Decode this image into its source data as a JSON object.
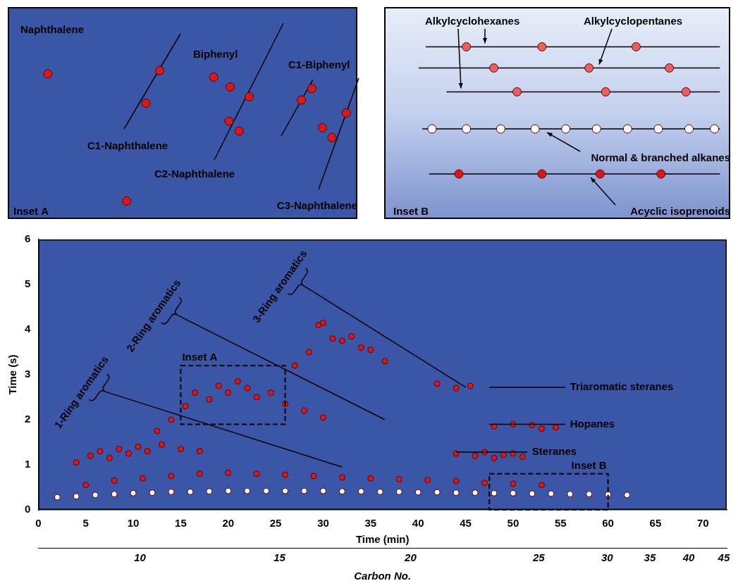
{
  "chart_data": [
    {
      "type": "scatter",
      "x_label": "Time (min)",
      "y_label": "Time (s)",
      "xlim": [
        0,
        72.5
      ],
      "xticks": [
        0,
        5,
        10,
        15,
        20,
        25,
        30,
        35,
        40,
        45,
        50,
        55,
        60,
        65,
        70
      ],
      "ylim": [
        0,
        6
      ],
      "yticks": [
        0,
        1,
        2,
        3,
        4,
        5,
        6
      ],
      "x2_label": "Carbon No.",
      "x2lim": [
        0,
        72.5
      ],
      "x2ticks": [
        {
          "value": 10.7,
          "label": "10"
        },
        {
          "value": 25.4,
          "label": "15"
        },
        {
          "value": 39.2,
          "label": "20"
        },
        {
          "value": 52.7,
          "label": "25"
        },
        {
          "value": 59.9,
          "label": "30"
        },
        {
          "value": 64.4,
          "label": "35"
        },
        {
          "value": 68.5,
          "label": "40"
        },
        {
          "value": 72.2,
          "label": "45"
        }
      ],
      "grid": false,
      "annotations": [
        "1-Ring aromatics",
        "2-Ring aromatics",
        "3-Ring aromatics",
        "Triaromatic steranes",
        "Hopanes",
        "Steranes"
      ],
      "series": [
        {
          "color": "#ffffff",
          "values": [
            [
              2,
              0.28
            ],
            [
              4,
              0.3
            ],
            [
              6,
              0.33
            ],
            [
              8,
              0.35
            ],
            [
              10,
              0.37
            ],
            [
              12,
              0.38
            ],
            [
              14,
              0.4
            ],
            [
              16,
              0.4
            ],
            [
              18,
              0.41
            ],
            [
              20,
              0.42
            ],
            [
              22,
              0.42
            ],
            [
              24,
              0.42
            ],
            [
              26,
              0.42
            ],
            [
              28,
              0.42
            ],
            [
              30,
              0.42
            ],
            [
              32,
              0.41
            ],
            [
              34,
              0.41
            ],
            [
              36,
              0.4
            ],
            [
              38,
              0.4
            ],
            [
              40,
              0.39
            ],
            [
              42,
              0.39
            ],
            [
              44,
              0.38
            ],
            [
              46,
              0.38
            ],
            [
              48,
              0.37
            ],
            [
              50,
              0.37
            ],
            [
              52,
              0.36
            ],
            [
              54,
              0.36
            ],
            [
              56,
              0.35
            ],
            [
              58,
              0.35
            ],
            [
              60,
              0.34
            ],
            [
              62,
              0.33
            ]
          ]
        },
        {
          "color": "#d7191c",
          "values": [
            [
              5,
              0.55
            ],
            [
              8,
              0.65
            ],
            [
              11,
              0.7
            ],
            [
              14,
              0.75
            ],
            [
              17,
              0.8
            ],
            [
              20,
              0.82
            ],
            [
              23,
              0.8
            ],
            [
              26,
              0.78
            ],
            [
              29,
              0.75
            ],
            [
              32,
              0.72
            ],
            [
              35,
              0.7
            ],
            [
              38,
              0.68
            ],
            [
              41,
              0.66
            ],
            [
              44,
              0.64
            ],
            [
              47,
              0.6
            ],
            [
              50,
              0.58
            ],
            [
              53,
              0.55
            ],
            [
              4,
              1.05
            ],
            [
              5.5,
              1.2
            ],
            [
              6.5,
              1.3
            ],
            [
              7.5,
              1.15
            ],
            [
              8.5,
              1.35
            ],
            [
              9.5,
              1.25
            ],
            [
              10.5,
              1.4
            ],
            [
              11.5,
              1.3
            ],
            [
              13,
              1.45
            ],
            [
              15,
              1.35
            ],
            [
              17,
              1.3
            ],
            [
              12.5,
              1.75
            ],
            [
              14,
              2.0
            ],
            [
              15.5,
              2.3
            ],
            [
              16.5,
              2.6
            ],
            [
              18,
              2.45
            ],
            [
              19,
              2.75
            ],
            [
              20,
              2.6
            ],
            [
              21,
              2.85
            ],
            [
              22,
              2.7
            ],
            [
              23,
              2.5
            ],
            [
              24.5,
              2.6
            ],
            [
              26,
              2.35
            ],
            [
              28,
              2.2
            ],
            [
              30,
              2.05
            ],
            [
              27,
              3.2
            ],
            [
              28.5,
              3.5
            ],
            [
              29.5,
              4.1
            ],
            [
              30,
              4.15
            ],
            [
              31,
              3.8
            ],
            [
              32,
              3.75
            ],
            [
              33,
              3.85
            ],
            [
              34,
              3.6
            ],
            [
              35,
              3.55
            ],
            [
              36.5,
              3.3
            ],
            [
              44,
              1.25
            ],
            [
              46,
              1.2
            ],
            [
              47,
              1.28
            ],
            [
              48,
              1.15
            ],
            [
              49,
              1.22
            ],
            [
              50,
              1.25
            ],
            [
              51,
              1.18
            ],
            [
              48,
              1.85
            ],
            [
              50,
              1.9
            ],
            [
              52,
              1.88
            ],
            [
              53,
              1.8
            ],
            [
              54.5,
              1.83
            ],
            [
              42,
              2.8
            ],
            [
              44,
              2.7
            ],
            [
              45.5,
              2.75
            ]
          ]
        }
      ]
    },
    {
      "type": "scatter",
      "title": "Inset A",
      "tick_labels": false,
      "xlim": [
        15,
        26
      ],
      "ylim": [
        1.9,
        3.2
      ],
      "annotations": [
        "Naphthalene",
        "C1-Naphthalene",
        "Biphenyl",
        "C2-Naphthalene",
        "C1-Biphenyl",
        "C3-Naphthalene"
      ],
      "series": [
        {
          "color": "#d7191c",
          "values": [
            [
              16.26,
              2.79
            ],
            [
              19.35,
              2.61
            ],
            [
              19.78,
              2.81
            ],
            [
              21.48,
              2.77
            ],
            [
              21.96,
              2.5
            ],
            [
              22.28,
              2.44
            ],
            [
              22.6,
              2.65
            ],
            [
              22.0,
              2.71
            ],
            [
              24.24,
              2.63
            ],
            [
              24.57,
              2.7
            ],
            [
              24.9,
              2.46
            ],
            [
              25.2,
              2.4
            ],
            [
              25.65,
              2.55
            ],
            [
              18.74,
              2.01
            ]
          ]
        }
      ]
    },
    {
      "type": "scatter",
      "title": "Inset B",
      "tick_labels": false,
      "xlim": [
        47.5,
        60
      ],
      "ylim": [
        0,
        0.8
      ],
      "annotations": [
        "Alkylcyclohexanes",
        "Alkylcyclopentanes",
        "Normal & branched alkanes",
        "Acyclic isoprenoids"
      ],
      "series": [
        {
          "color": "#e86060",
          "values": [
            [
              50.47,
              0.65
            ],
            [
              53.2,
              0.65
            ],
            [
              56.6,
              0.65
            ]
          ]
        },
        {
          "color": "#e86060",
          "values": [
            [
              51.46,
              0.57
            ],
            [
              54.9,
              0.57
            ],
            [
              57.8,
              0.57
            ]
          ]
        },
        {
          "color": "#e86060",
          "values": [
            [
              52.3,
              0.48
            ],
            [
              55.5,
              0.48
            ],
            [
              58.4,
              0.48
            ]
          ]
        },
        {
          "color": "#ffffff",
          "values": [
            [
              49.23,
              0.34
            ],
            [
              50.47,
              0.34
            ],
            [
              51.71,
              0.34
            ],
            [
              52.95,
              0.34
            ],
            [
              54.06,
              0.34
            ],
            [
              55.17,
              0.34
            ],
            [
              56.29,
              0.34
            ],
            [
              57.4,
              0.34
            ],
            [
              58.51,
              0.34
            ],
            [
              59.43,
              0.34
            ]
          ]
        },
        {
          "color": "#d7191c",
          "values": [
            [
              50.2,
              0.17
            ],
            [
              53.2,
              0.17
            ],
            [
              55.3,
              0.17
            ],
            [
              57.5,
              0.17
            ]
          ]
        }
      ]
    }
  ]
}
